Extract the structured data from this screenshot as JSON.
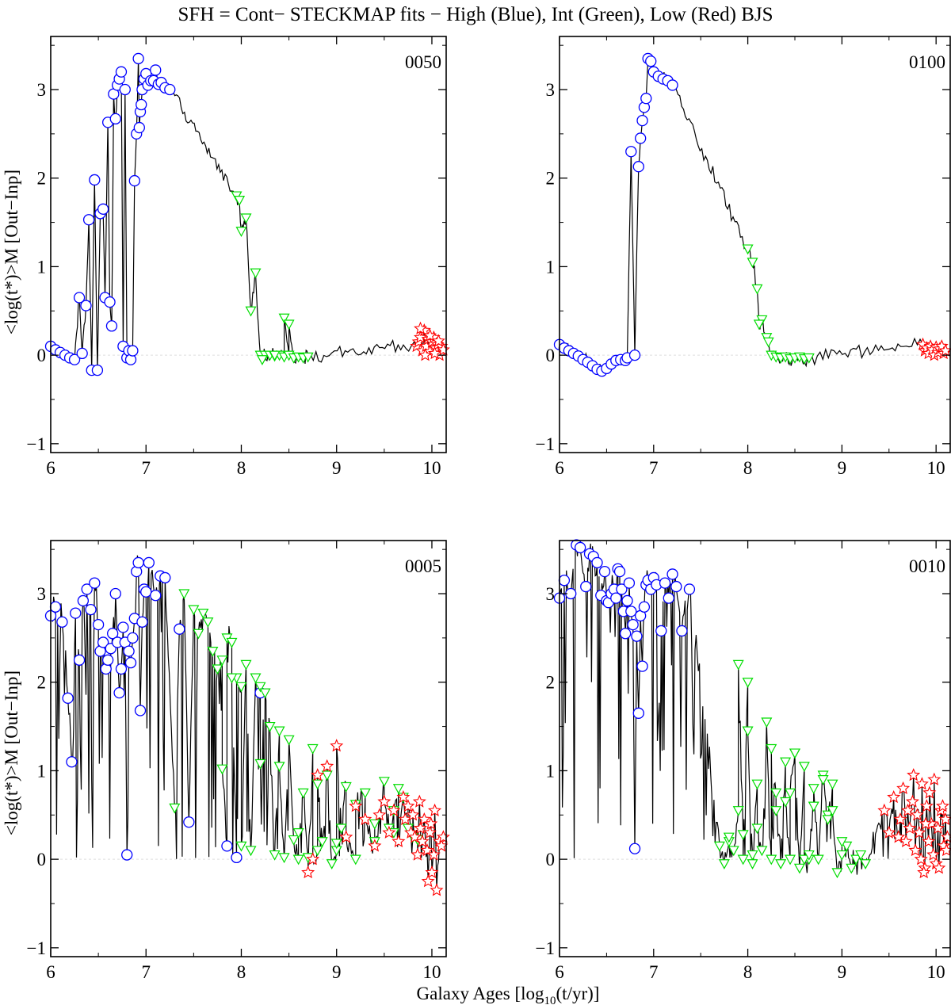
{
  "figure": {
    "title": "SFH = Cont− STECKMAP fits − High (Blue), Int (Green), Low (Red) BJS",
    "xlabel": "Galaxy Ages [log",
    "xlabel_sub": "10",
    "xlabel_tail": "(t/yr)]",
    "ylabel": "<log(t*)>M  [Out−Inp]"
  },
  "colors": {
    "high": "#0000ff",
    "int": "#00dd00",
    "low": "#ff0000",
    "line": "#000000",
    "zero": "#dddddd"
  },
  "chart_data": [
    {
      "type": "line",
      "label": "0050",
      "xlim": [
        6,
        10.15
      ],
      "ylim": [
        -1.1,
        3.6
      ],
      "xticks": [
        6,
        7,
        8,
        9,
        10
      ],
      "yticks": [
        -1,
        0,
        1,
        2,
        3
      ],
      "series": [
        {
          "name": "High (Blue)",
          "marker": "circle",
          "x": [
            6.0,
            6.05,
            6.1,
            6.15,
            6.2,
            6.25,
            6.3,
            6.33,
            6.37,
            6.4,
            6.43,
            6.46,
            6.49,
            6.52,
            6.55,
            6.57,
            6.6,
            6.62,
            6.64,
            6.66,
            6.68,
            6.7,
            6.72,
            6.74,
            6.76,
            6.78,
            6.8,
            6.82,
            6.84,
            6.86,
            6.88,
            6.9,
            6.92,
            6.93,
            6.94,
            6.95,
            6.96,
            6.98,
            7.0,
            7.02,
            7.05,
            7.08,
            7.1,
            7.13,
            7.16,
            7.2,
            7.25
          ],
          "y": [
            0.1,
            0.06,
            0.03,
            0.0,
            -0.03,
            -0.05,
            0.65,
            0.02,
            0.56,
            1.53,
            -0.17,
            1.98,
            -0.17,
            1.6,
            1.65,
            0.65,
            2.63,
            0.6,
            0.33,
            2.95,
            2.67,
            3.05,
            3.12,
            3.2,
            0.1,
            3.0,
            -0.03,
            0.05,
            -0.05,
            0.05,
            1.97,
            2.5,
            3.35,
            2.57,
            2.75,
            2.83,
            3.0,
            3.12,
            3.18,
            3.05,
            3.1,
            3.1,
            3.22,
            3.06,
            3.08,
            3.02,
            3.0
          ]
        },
        {
          "name": "Int (Green)",
          "marker": "triangle",
          "x": [
            7.95,
            7.98,
            8.0,
            8.05,
            8.1,
            8.15,
            8.2,
            8.25,
            8.3,
            8.35,
            8.4,
            8.45,
            8.5,
            8.55,
            8.6,
            8.65,
            8.7,
            8.22,
            8.35,
            8.45,
            8.5
          ],
          "y": [
            1.8,
            1.75,
            1.4,
            1.55,
            0.5,
            0.93,
            0.0,
            0.0,
            0.0,
            -0.01,
            0.0,
            -0.02,
            0.0,
            -0.03,
            -0.02,
            -0.03,
            -0.02,
            -0.05,
            0.0,
            0.42,
            0.35
          ]
        },
        {
          "name": "Low (Red)",
          "marker": "star",
          "x": [
            9.84,
            9.86,
            9.88,
            9.9,
            9.92,
            9.94,
            9.96,
            9.98,
            10.0,
            10.02,
            10.04,
            10.06,
            10.08,
            10.1,
            9.88,
            9.93,
            9.98,
            10.03,
            10.07,
            10.12
          ],
          "y": [
            0.1,
            0.15,
            0.2,
            0.05,
            0.28,
            0.1,
            0.18,
            0.04,
            0.15,
            0.2,
            0.08,
            0.12,
            0.0,
            0.1,
            0.3,
            0.0,
            0.22,
            0.02,
            0.16,
            0.06
          ]
        }
      ]
    },
    {
      "type": "line",
      "label": "0100",
      "xlim": [
        6,
        10.15
      ],
      "ylim": [
        -1.1,
        3.6
      ],
      "xticks": [
        6,
        7,
        8,
        9,
        10
      ],
      "yticks": [
        -1,
        0,
        1,
        2,
        3
      ],
      "series": [
        {
          "name": "High (Blue)",
          "marker": "circle",
          "x": [
            6.0,
            6.05,
            6.1,
            6.15,
            6.2,
            6.25,
            6.3,
            6.35,
            6.4,
            6.45,
            6.5,
            6.55,
            6.6,
            6.65,
            6.7,
            6.72,
            6.76,
            6.8,
            6.84,
            6.86,
            6.88,
            6.9,
            6.92,
            6.94,
            6.97,
            7.0,
            7.05,
            7.1,
            7.15,
            7.2
          ],
          "y": [
            0.12,
            0.08,
            0.05,
            0.02,
            -0.01,
            -0.05,
            -0.08,
            -0.12,
            -0.16,
            -0.18,
            -0.15,
            -0.1,
            -0.06,
            -0.05,
            -0.06,
            -0.03,
            2.3,
            0.0,
            2.13,
            2.45,
            2.65,
            2.8,
            2.9,
            3.35,
            3.32,
            3.2,
            3.15,
            3.12,
            3.1,
            3.05
          ]
        },
        {
          "name": "Int (Green)",
          "marker": "triangle",
          "x": [
            8.0,
            8.05,
            8.1,
            8.15,
            8.2,
            8.25,
            8.3,
            8.35,
            8.4,
            8.45,
            8.5,
            8.55,
            8.6,
            8.65,
            8.12,
            8.22
          ],
          "y": [
            1.2,
            1.05,
            0.75,
            0.4,
            0.2,
            0.0,
            -0.02,
            -0.03,
            -0.02,
            -0.04,
            -0.03,
            -0.02,
            -0.04,
            -0.03,
            0.35,
            0.15
          ]
        },
        {
          "name": "Low (Red)",
          "marker": "star",
          "x": [
            9.86,
            9.88,
            9.9,
            9.92,
            9.94,
            9.96,
            9.98,
            10.0,
            10.02,
            10.04,
            10.06,
            10.08,
            10.1
          ],
          "y": [
            0.12,
            0.05,
            0.08,
            0.02,
            0.1,
            0.06,
            0.0,
            0.09,
            0.03,
            0.07,
            0.1,
            0.02,
            0.05
          ]
        }
      ]
    },
    {
      "type": "line",
      "label": "0005",
      "xlim": [
        6,
        10.15
      ],
      "ylim": [
        -1.1,
        3.6
      ],
      "xticks": [
        6,
        7,
        8,
        9,
        10
      ],
      "yticks": [
        -1,
        0,
        1,
        2,
        3
      ],
      "series": [
        {
          "name": "High (Blue)",
          "marker": "circle",
          "x": [
            6.0,
            6.05,
            6.12,
            6.18,
            6.22,
            6.26,
            6.3,
            6.34,
            6.38,
            6.42,
            6.46,
            6.5,
            6.52,
            6.55,
            6.58,
            6.6,
            6.63,
            6.65,
            6.68,
            6.7,
            6.72,
            6.74,
            6.76,
            6.78,
            6.8,
            6.82,
            6.84,
            6.86,
            6.88,
            6.9,
            6.92,
            6.94,
            6.96,
            6.98,
            7.0,
            7.03,
            7.1,
            7.15,
            7.2,
            7.35,
            7.45,
            7.85,
            7.95,
            8.2
          ],
          "y": [
            2.75,
            2.85,
            2.68,
            1.82,
            1.1,
            2.78,
            2.25,
            2.92,
            3.05,
            2.82,
            3.12,
            2.65,
            2.35,
            2.45,
            2.15,
            2.25,
            2.38,
            2.55,
            3.0,
            2.45,
            1.88,
            2.15,
            2.62,
            2.45,
            0.05,
            2.35,
            2.22,
            2.5,
            2.72,
            3.25,
            3.35,
            1.68,
            2.68,
            3.05,
            3.02,
            3.35,
            2.98,
            3.2,
            3.18,
            2.6,
            0.42,
            0.15,
            0.02,
            1.88
          ]
        },
        {
          "name": "Int (Green)",
          "marker": "triangle",
          "x": [
            7.3,
            7.4,
            7.5,
            7.55,
            7.6,
            7.65,
            7.7,
            7.75,
            7.8,
            7.85,
            7.9,
            7.95,
            8.0,
            8.05,
            8.1,
            8.15,
            8.2,
            8.25,
            8.3,
            8.35,
            8.4,
            8.45,
            8.5,
            8.55,
            8.6,
            8.65,
            8.7,
            8.75,
            8.8,
            8.85,
            8.9,
            8.95,
            9.0,
            9.05,
            9.1,
            9.2,
            9.3,
            9.4,
            9.5,
            9.55,
            9.6,
            9.65,
            9.7,
            9.75,
            9.8,
            9.85,
            7.8,
            7.9,
            8.0,
            8.2,
            8.4,
            8.6,
            8.8,
            9.0,
            9.2,
            9.4,
            9.6
          ],
          "y": [
            0.58,
            3.0,
            2.82,
            2.55,
            2.78,
            2.68,
            2.35,
            2.15,
            2.25,
            2.5,
            2.45,
            2.05,
            1.95,
            2.2,
            0.1,
            2.05,
            1.95,
            1.88,
            1.5,
            0.05,
            1.45,
            0.02,
            1.35,
            0.22,
            0.0,
            0.75,
            0.02,
            1.25,
            0.1,
            0.2,
            0.95,
            -0.05,
            0.1,
            0.35,
            0.82,
            0.0,
            0.75,
            0.2,
            0.88,
            0.35,
            0.55,
            0.8,
            0.7,
            0.35,
            0.25,
            0.22,
            1.02,
            2.05,
            0.15,
            1.08,
            1.05,
            0.3,
            0.85,
            0.18,
            0.62,
            0.4,
            0.3
          ]
        },
        {
          "name": "Low (Red)",
          "marker": "star",
          "x": [
            8.7,
            8.75,
            8.8,
            8.9,
            9.0,
            9.1,
            9.2,
            9.3,
            9.4,
            9.45,
            9.5,
            9.55,
            9.6,
            9.65,
            9.7,
            9.72,
            9.75,
            9.78,
            9.8,
            9.82,
            9.85,
            9.88,
            9.9,
            9.92,
            9.95,
            9.98,
            10.0,
            10.02,
            10.05,
            10.08,
            10.1,
            10.12,
            9.96,
            9.99,
            10.03,
            9.87
          ],
          "y": [
            -0.15,
            0.0,
            0.95,
            1.05,
            1.28,
            0.25,
            0.6,
            0.45,
            0.15,
            0.5,
            0.65,
            0.3,
            0.55,
            0.2,
            0.7,
            0.45,
            0.6,
            0.3,
            0.5,
            0.25,
            0.05,
            0.35,
            0.2,
            0.45,
            0.1,
            0.3,
            -0.15,
            0.05,
            -0.35,
            0.2,
            0.15,
            0.25,
            -0.25,
            0.4,
            0.55,
            0.65
          ]
        }
      ]
    },
    {
      "type": "line",
      "label": "0010",
      "xlim": [
        6,
        10.15
      ],
      "ylim": [
        -1.1,
        3.6
      ],
      "xticks": [
        6,
        7,
        8,
        9,
        10
      ],
      "yticks": [
        -1,
        0,
        1,
        2,
        3
      ],
      "series": [
        {
          "name": "High (Blue)",
          "marker": "circle",
          "x": [
            6.0,
            6.05,
            6.12,
            6.18,
            6.22,
            6.28,
            6.32,
            6.36,
            6.4,
            6.44,
            6.48,
            6.5,
            6.52,
            6.55,
            6.58,
            6.6,
            6.62,
            6.64,
            6.66,
            6.68,
            6.7,
            6.72,
            6.74,
            6.76,
            6.78,
            6.8,
            6.82,
            6.84,
            6.86,
            6.88,
            6.9,
            6.92,
            6.94,
            6.97,
            7.0,
            7.03,
            7.08,
            7.12,
            7.16,
            7.2,
            7.24,
            7.3,
            7.38
          ],
          "y": [
            2.95,
            3.15,
            3.0,
            3.55,
            3.52,
            3.08,
            3.45,
            3.42,
            3.35,
            2.98,
            3.25,
            2.92,
            2.9,
            3.0,
            3.05,
            2.95,
            3.28,
            3.25,
            3.05,
            2.8,
            2.55,
            2.92,
            3.12,
            2.8,
            2.65,
            0.12,
            2.52,
            1.65,
            2.75,
            2.18,
            2.85,
            3.1,
            3.15,
            3.05,
            3.18,
            3.1,
            2.58,
            3.12,
            2.95,
            3.22,
            3.08,
            2.58,
            3.05
          ]
        },
        {
          "name": "Int (Green)",
          "marker": "triangle",
          "x": [
            7.7,
            7.75,
            7.8,
            7.85,
            7.9,
            7.95,
            8.0,
            8.05,
            8.1,
            8.15,
            8.2,
            8.25,
            8.3,
            8.35,
            8.4,
            8.45,
            8.5,
            8.55,
            8.6,
            8.65,
            8.7,
            8.75,
            8.8,
            8.85,
            8.9,
            8.95,
            9.0,
            9.05,
            9.1,
            9.15,
            9.2,
            9.25,
            7.9,
            8.0,
            8.3,
            8.5,
            8.7,
            8.9,
            7.8,
            8.1,
            8.4,
            8.6,
            8.8,
            9.0,
            8.25,
            8.45,
            8.65,
            8.85,
            7.95,
            8.05
          ],
          "y": [
            0.15,
            -0.05,
            0.2,
            0.1,
            0.55,
            0.28,
            2.0,
            0.05,
            0.85,
            0.1,
            1.55,
            0.0,
            0.75,
            -0.05,
            1.1,
            0.0,
            1.2,
            -0.1,
            1.05,
            0.0,
            0.6,
            0.0,
            0.95,
            0.5,
            0.85,
            -0.15,
            0.05,
            0.15,
            -0.1,
            0.0,
            0.05,
            -0.05,
            2.2,
            1.45,
            0.55,
            1.2,
            0.8,
            0.55,
            0.25,
            0.35,
            0.65,
            0.0,
            0.9,
            0.2,
            1.25,
            0.75,
            0.05,
            0.45,
            0.0,
            -0.05
          ]
        },
        {
          "name": "Low (Red)",
          "marker": "star",
          "x": [
            9.45,
            9.5,
            9.55,
            9.6,
            9.62,
            9.65,
            9.68,
            9.7,
            9.72,
            9.75,
            9.78,
            9.8,
            9.82,
            9.85,
            9.88,
            9.9,
            9.92,
            9.95,
            9.98,
            10.0,
            10.02,
            10.05,
            10.08,
            10.1,
            10.12,
            9.84,
            9.87,
            9.93,
            9.97,
            10.03,
            10.07,
            10.11,
            9.76,
            9.89
          ],
          "y": [
            0.55,
            0.3,
            0.7,
            0.25,
            0.45,
            0.8,
            0.2,
            0.55,
            0.35,
            0.65,
            0.1,
            0.5,
            0.3,
            0.85,
            -0.1,
            0.6,
            0.2,
            0.4,
            0.9,
            -0.05,
            0.35,
            0.55,
            0.15,
            0.45,
            0.25,
            0.0,
            -0.15,
            0.75,
            0.05,
            -0.1,
            0.6,
            0.1,
            0.95,
            0.4
          ]
        }
      ]
    }
  ]
}
